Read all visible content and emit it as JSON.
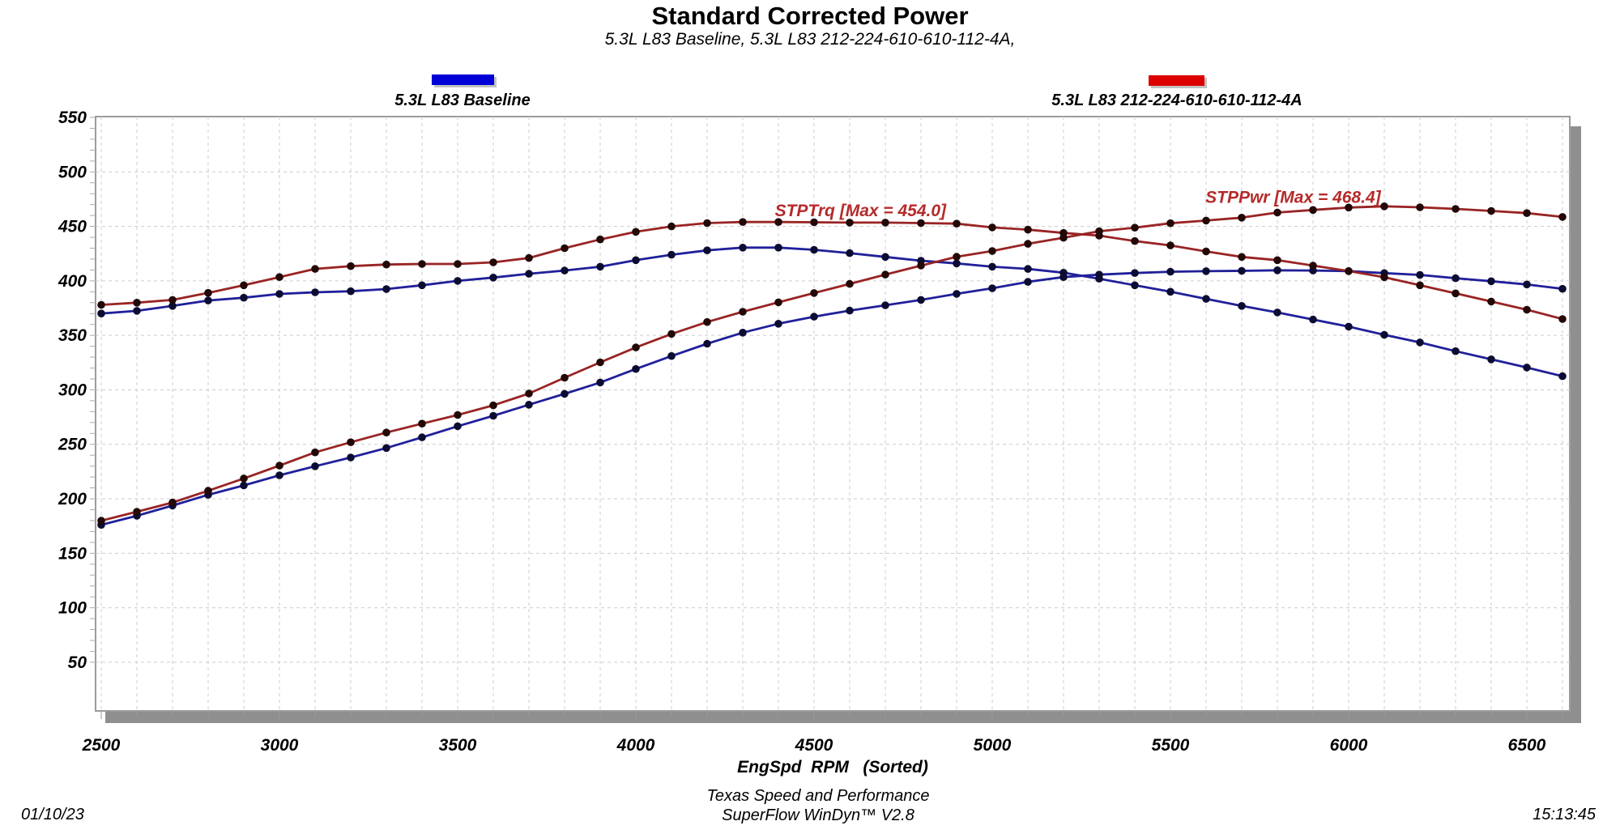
{
  "header": {
    "title": "Standard Corrected Power",
    "subtitle": "5.3L L83 Baseline, 5.3L L83 212-224-610-610-112-4A,"
  },
  "legend": [
    {
      "label": "5.3L L83 Baseline",
      "color": "#0000d6"
    },
    {
      "label": "5.3L L83 212-224-610-610-112-4A",
      "color": "#dd0000"
    }
  ],
  "footer": {
    "company": "Texas Speed and Performance",
    "software": "SuperFlow WinDyn™ V2.8",
    "date": "01/10/23",
    "time": "15:13:45"
  },
  "chart_data": {
    "type": "line",
    "title": "Standard Corrected Power",
    "subtitle": "5.3L L83 Baseline, 5.3L L83 212-224-610-610-112-4A,",
    "xlabel": "EngSpd  RPM   (Sorted)",
    "ylabel": "",
    "grid": true,
    "legend_position": "top",
    "xlim": [
      2500,
      6620
    ],
    "ylim": [
      5,
      550
    ],
    "x_ticks": [
      2500,
      3000,
      3500,
      4000,
      4500,
      5000,
      5500,
      6000,
      6500
    ],
    "y_ticks": [
      50,
      100,
      150,
      200,
      250,
      300,
      350,
      400,
      450,
      500,
      550
    ],
    "x_minor_step": 100,
    "y_minor_step": 10,
    "x": [
      2500,
      2600,
      2700,
      2800,
      2900,
      3000,
      3100,
      3200,
      3300,
      3400,
      3500,
      3600,
      3700,
      3800,
      3900,
      4000,
      4100,
      4200,
      4300,
      4400,
      4500,
      4600,
      4700,
      4800,
      4900,
      5000,
      5100,
      5200,
      5300,
      5400,
      5500,
      5600,
      5700,
      5800,
      5900,
      6000,
      6100,
      6200,
      6300,
      6400,
      6500,
      6600
    ],
    "series": [
      {
        "name": "STPTrq",
        "run": "5.3L L83 Baseline",
        "max": 430.5,
        "color": "#20209a",
        "marker_color": "#0c0c33",
        "values": [
          370,
          372.5,
          377,
          382,
          384.5,
          388,
          389.5,
          390.5,
          392.5,
          396,
          400,
          403,
          406.5,
          409.5,
          413,
          419,
          424,
          428,
          430.5,
          430.5,
          428.5,
          425.5,
          422,
          418.5,
          416,
          413,
          411,
          407.5,
          402,
          396,
          390,
          383.5,
          377,
          371,
          364.5,
          358,
          350.5,
          343.5,
          335.5,
          328,
          320.5,
          312.5
        ]
      },
      {
        "name": "STPPwr",
        "run": "5.3L L83 Baseline",
        "max": 409.7,
        "color": "#20209a",
        "marker_color": "#0c0c33",
        "values": [
          176.1,
          184.4,
          193.8,
          203.7,
          212.3,
          221.6,
          229.9,
          237.9,
          246.6,
          256.4,
          266.6,
          276.2,
          286.4,
          296.3,
          306.7,
          319.1,
          331.0,
          342.3,
          352.5,
          360.7,
          367.1,
          372.7,
          377.6,
          382.5,
          388.1,
          393.2,
          399.1,
          403.5,
          405.7,
          407.2,
          408.4,
          408.9,
          409.2,
          409.7,
          409.5,
          409.0,
          407.1,
          405.5,
          402.4,
          399.7,
          396.7,
          392.7
        ]
      },
      {
        "name": "STPTrq",
        "run": "5.3L L83 212-224-610-610-112-4A",
        "max": 454.0,
        "color": "#992424",
        "marker_color": "#230808",
        "values": [
          378,
          380,
          382.5,
          389,
          396,
          403.5,
          411,
          413.5,
          415,
          415.5,
          415.5,
          417,
          421,
          430,
          438,
          445,
          450,
          453,
          454,
          454,
          453.8,
          453.5,
          453.5,
          453,
          452.5,
          449,
          447,
          444,
          441.5,
          436.5,
          432.5,
          427,
          422,
          419,
          414,
          409,
          403.3,
          396,
          388.5,
          381,
          373.5,
          365
        ]
      },
      {
        "name": "STPPwr",
        "run": "5.3L L83 212-224-610-610-112-4A",
        "max": 468.4,
        "color": "#992424",
        "marker_color": "#230808",
        "values": [
          179.9,
          188.1,
          196.6,
          207.4,
          218.7,
          230.5,
          242.6,
          251.9,
          260.8,
          269.0,
          276.9,
          285.8,
          296.6,
          311.1,
          325.2,
          338.9,
          351.3,
          362.2,
          371.7,
          380.3,
          388.8,
          397.2,
          405.8,
          414.0,
          422.1,
          427.4,
          434.0,
          439.6,
          445.5,
          448.8,
          452.9,
          455.3,
          458.0,
          462.7,
          465.1,
          467.3,
          468.4,
          467.5,
          466.0,
          464.2,
          462.2,
          458.7
        ]
      }
    ],
    "annotations": [
      {
        "text": "STPTrq [Max = 454.0]",
        "x": 4390,
        "y": 459.5,
        "color": "#b52a2a"
      },
      {
        "text": "STPPwr [Max = 468.4]",
        "x": 5598,
        "y": 471.5,
        "color": "#b52a2a"
      }
    ]
  }
}
